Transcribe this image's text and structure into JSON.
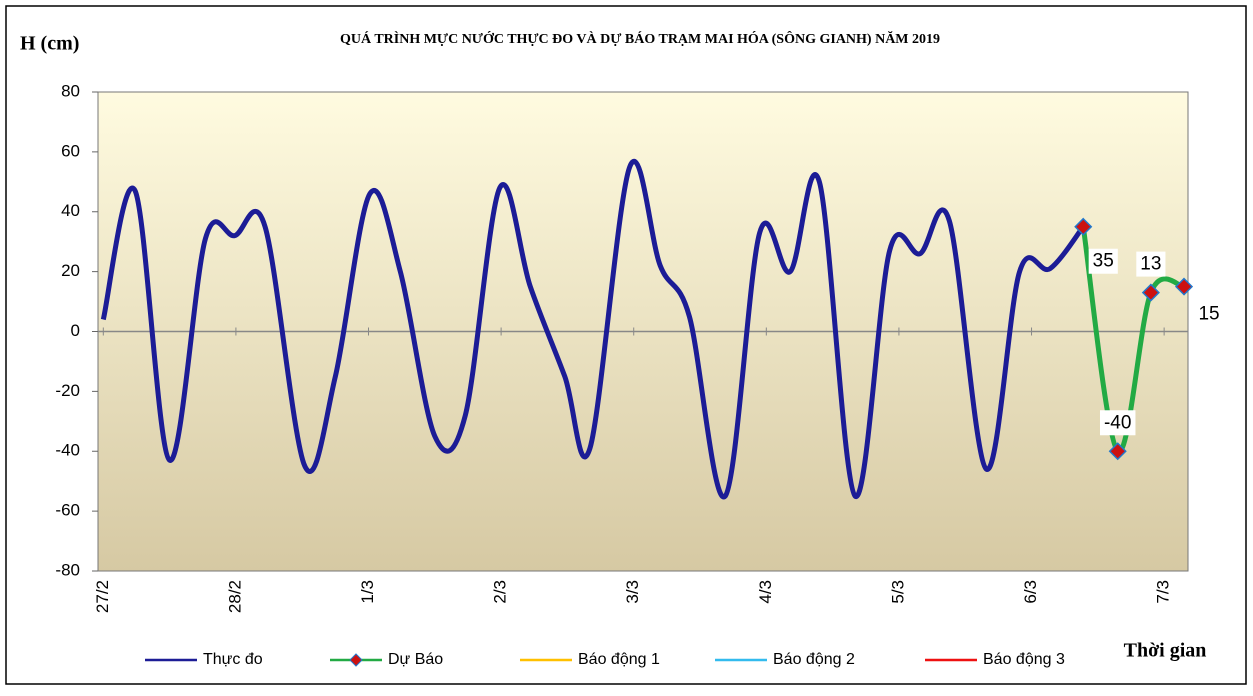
{
  "chart_data": {
    "type": "line",
    "title": "QUÁ TRÌNH MỰC NƯỚC THỰC ĐO VÀ DỰ BÁO TRẠM MAI HÓA (SÔNG GIANH) NĂM  2019",
    "y_label": "H (cm)",
    "x_label": "Thời gian",
    "xlim": [
      -0.04,
      8.18
    ],
    "xticks": [
      {
        "value": 0,
        "label": "27/2"
      },
      {
        "value": 1,
        "label": "28/2"
      },
      {
        "value": 2,
        "label": "1/3"
      },
      {
        "value": 3,
        "label": "2/3"
      },
      {
        "value": 4,
        "label": "3/3"
      },
      {
        "value": 5,
        "label": "4/3"
      },
      {
        "value": 6,
        "label": "5/3"
      },
      {
        "value": 7,
        "label": "6/3"
      },
      {
        "value": 8,
        "label": "7/3"
      }
    ],
    "ylim": [
      -80,
      80
    ],
    "yticks": [
      -80,
      -60,
      -40,
      -20,
      0,
      20,
      40,
      60,
      80
    ],
    "series": [
      {
        "name": "Thực đo",
        "color": "#1c1c96",
        "x": [
          0,
          0.24,
          0.5,
          0.77,
          0.99,
          1.22,
          1.52,
          1.75,
          2.01,
          2.24,
          2.5,
          2.73,
          2.99,
          3.22,
          3.48,
          3.67,
          3.97,
          4.2,
          4.42,
          4.69,
          4.95,
          5.18,
          5.4,
          5.67,
          5.93,
          6.16,
          6.38,
          6.66,
          6.91,
          7.14,
          7.39
        ],
        "values": [
          4,
          47,
          -43,
          31,
          32,
          35,
          -45,
          -15,
          46,
          20,
          -35,
          -28,
          48,
          15,
          -15,
          -39,
          55,
          22,
          5,
          -55,
          33,
          20,
          50,
          -55,
          27,
          26,
          37,
          -46,
          20,
          21,
          35
        ]
      },
      {
        "name": "Dự Báo",
        "color": "#22aa44",
        "marker_color": "#cc1111",
        "x": [
          7.39,
          7.65,
          7.9,
          8.15
        ],
        "values": [
          35,
          -40,
          13,
          15
        ]
      },
      {
        "name": "Báo động 1",
        "color": "#ffc000",
        "x": [],
        "values": []
      },
      {
        "name": "Báo động 2",
        "color": "#33bbee",
        "x": [],
        "values": []
      },
      {
        "name": "Báo động 3",
        "color": "#ee1111",
        "x": [],
        "values": []
      }
    ]
  }
}
